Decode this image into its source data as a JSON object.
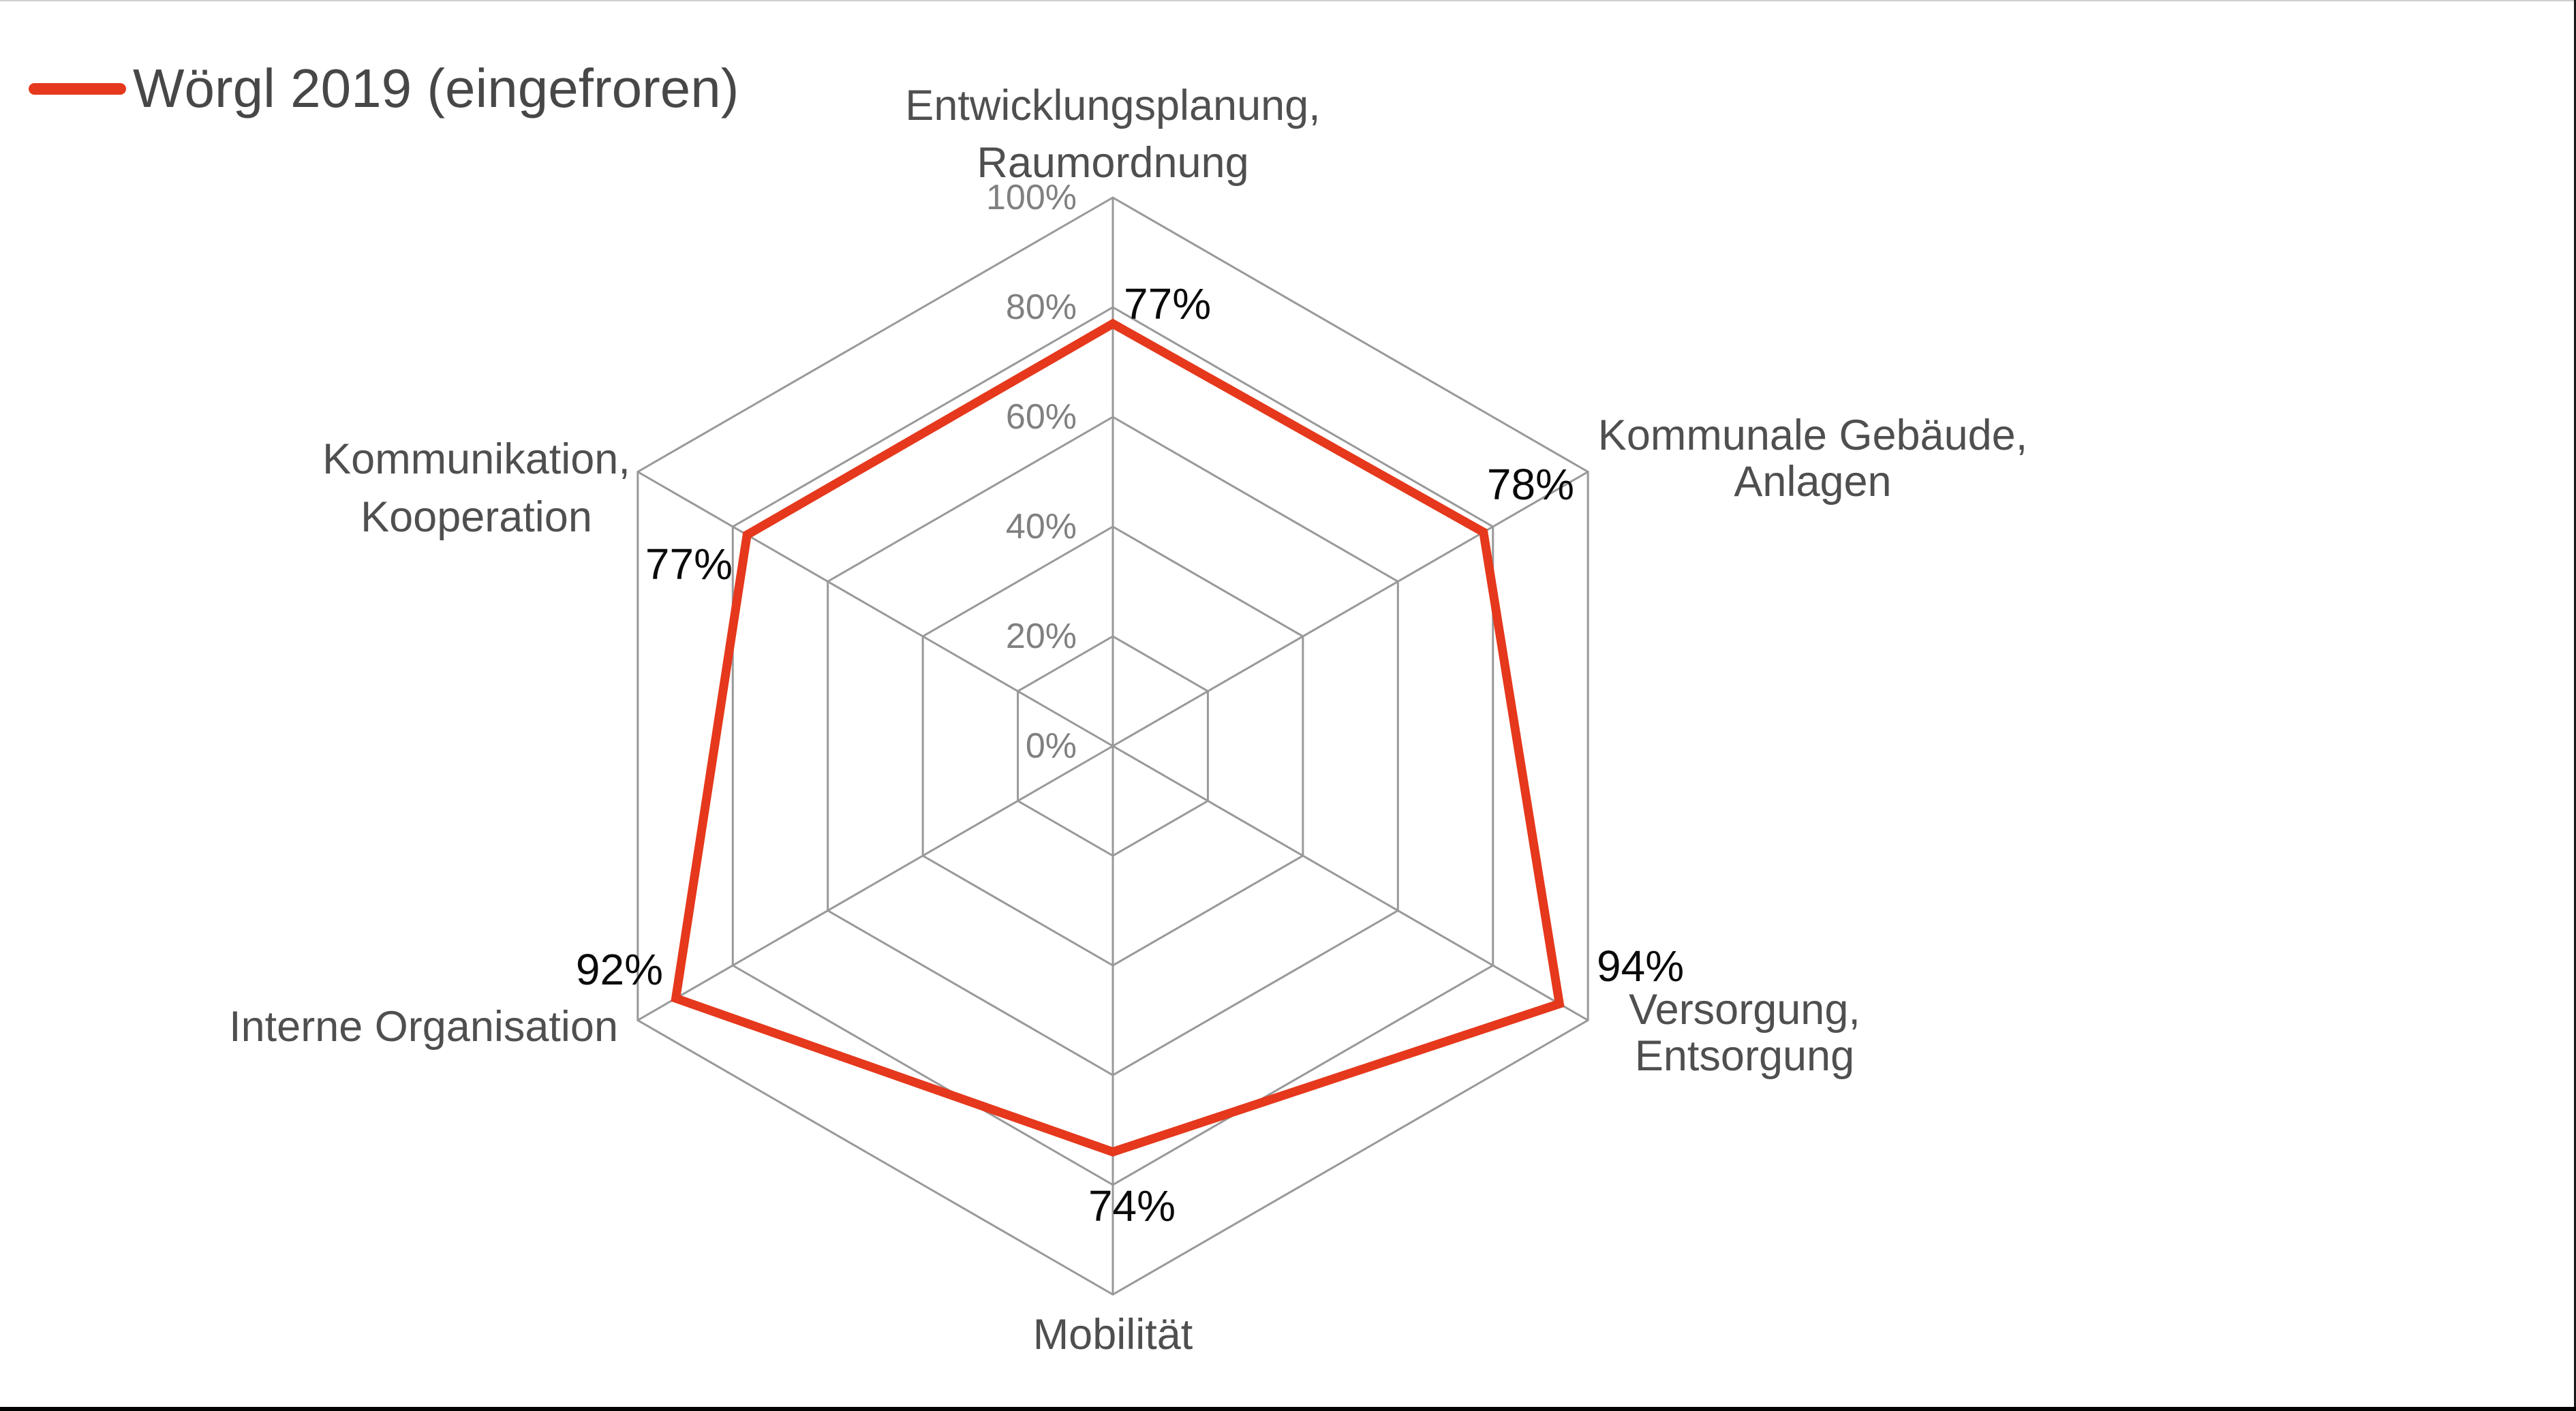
{
  "legend": {
    "label": "Wörgl 2019 (eingefroren)"
  },
  "chart_data": {
    "type": "radar",
    "title": "",
    "categories": [
      "Entwicklungsplanung, Raumordnung",
      "Kommunale Gebäude, Anlagen",
      "Versorgung, Entsorgung",
      "Mobilität",
      "Interne Organisation",
      "Kommunikation, Kooperation"
    ],
    "category_label_lines": [
      [
        "Entwicklungsplanung,",
        "Raumordnung"
      ],
      [
        "Kommunale Gebäude,",
        "Anlagen"
      ],
      [
        "Versorgung,",
        "Entsorgung"
      ],
      [
        "Mobilität"
      ],
      [
        "Interne Organisation"
      ],
      [
        "Kommunikation,",
        "Kooperation"
      ]
    ],
    "series": [
      {
        "name": "Wörgl 2019 (eingefroren)",
        "values": [
          77,
          78,
          94,
          74,
          92,
          77
        ]
      }
    ],
    "value_labels": [
      "77%",
      "78%",
      "94%",
      "74%",
      "92%",
      "77%"
    ],
    "axis_ticks": [
      "0%",
      "20%",
      "40%",
      "60%",
      "80%",
      "100%"
    ],
    "rmin": 0,
    "rmax": 100,
    "grid": true,
    "legend_position": "top-left",
    "colors": {
      "series_line": "#E5381C",
      "grid_line": "#999999",
      "tick_text": "#808080",
      "category_text": "#4F4F4F",
      "value_text": "#0a0a0a",
      "legend_text": "#474747",
      "background": "#ffffff"
    }
  }
}
